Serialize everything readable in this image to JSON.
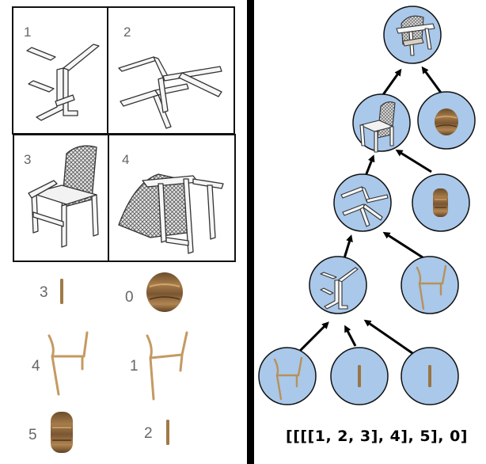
{
  "colors": {
    "node_fill": "#a9c8ea",
    "node_stroke": "#111111",
    "wood": "#9a7443",
    "wood_light": "#c8a068",
    "arrow": "#000000",
    "label": "#666666"
  },
  "assembly_steps": [
    {
      "number": "1",
      "icon": "chair-frame-parts-icon"
    },
    {
      "number": "2",
      "icon": "chair-frame-assembled-icon"
    },
    {
      "number": "3",
      "icon": "chair-upright-with-back-icon"
    },
    {
      "number": "4",
      "icon": "chair-upside-down-with-seat-icon"
    }
  ],
  "parts": [
    {
      "number": "3",
      "icon": "short-rod-icon"
    },
    {
      "number": "0",
      "icon": "round-seat-icon"
    },
    {
      "number": "4",
      "icon": "leg-frame-icon"
    },
    {
      "number": "1",
      "icon": "leg-frame-icon"
    },
    {
      "number": "5",
      "icon": "seat-cushion-icon"
    },
    {
      "number": "2",
      "icon": "short-rod-icon"
    }
  ],
  "tree": {
    "nodes": [
      {
        "id": "root",
        "icon": "finished-chair-icon"
      },
      {
        "id": "l3-main",
        "icon": "chair-with-back-icon"
      },
      {
        "id": "l3-part",
        "icon": "seat-icon"
      },
      {
        "id": "l2-main",
        "icon": "frame-icon"
      },
      {
        "id": "l2-part",
        "icon": "seat-cushion-icon"
      },
      {
        "id": "l1-main",
        "icon": "partial-frame-icon"
      },
      {
        "id": "l1-part",
        "icon": "leg-frame-icon"
      },
      {
        "id": "l0-a",
        "icon": "leg-frame-icon"
      },
      {
        "id": "l0-b",
        "icon": "rod-icon"
      },
      {
        "id": "l0-c",
        "icon": "rod-icon"
      }
    ],
    "edges": [
      [
        "l0-a",
        "l1-main"
      ],
      [
        "l0-b",
        "l1-main"
      ],
      [
        "l0-c",
        "l1-main"
      ],
      [
        "l1-main",
        "l2-main"
      ],
      [
        "l1-part",
        "l2-main"
      ],
      [
        "l2-main",
        "l3-main"
      ],
      [
        "l2-part",
        "l3-main"
      ],
      [
        "l3-main",
        "root"
      ],
      [
        "l3-part",
        "root"
      ]
    ]
  },
  "formula": "[[[[1, 2, 3], 4], 5], 0]"
}
